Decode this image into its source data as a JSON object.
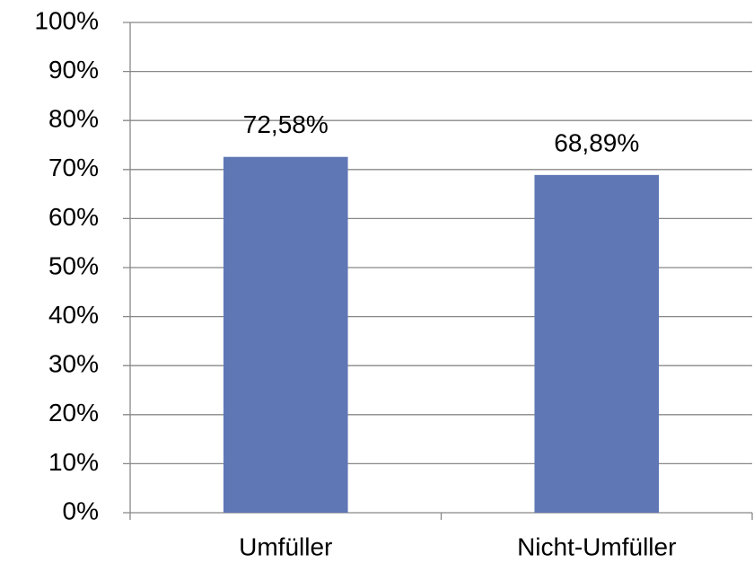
{
  "chart_data": {
    "type": "bar",
    "categories": [
      "Umfüller",
      "Nicht-Umfüller"
    ],
    "values": [
      72.58,
      68.89
    ],
    "value_labels": [
      "72,58%",
      "68,89%"
    ],
    "color": "#5f77b5",
    "ylim": [
      0,
      100
    ],
    "yticks": [
      {
        "value": 0,
        "label": "0%"
      },
      {
        "value": 10,
        "label": "10%"
      },
      {
        "value": 20,
        "label": "20%"
      },
      {
        "value": 30,
        "label": "30%"
      },
      {
        "value": 40,
        "label": "40%"
      },
      {
        "value": 50,
        "label": "50%"
      },
      {
        "value": 60,
        "label": "60%"
      },
      {
        "value": 70,
        "label": "70%"
      },
      {
        "value": 80,
        "label": "80%"
      },
      {
        "value": 90,
        "label": "90%"
      },
      {
        "value": 100,
        "label": "100%"
      }
    ],
    "grid": true
  }
}
